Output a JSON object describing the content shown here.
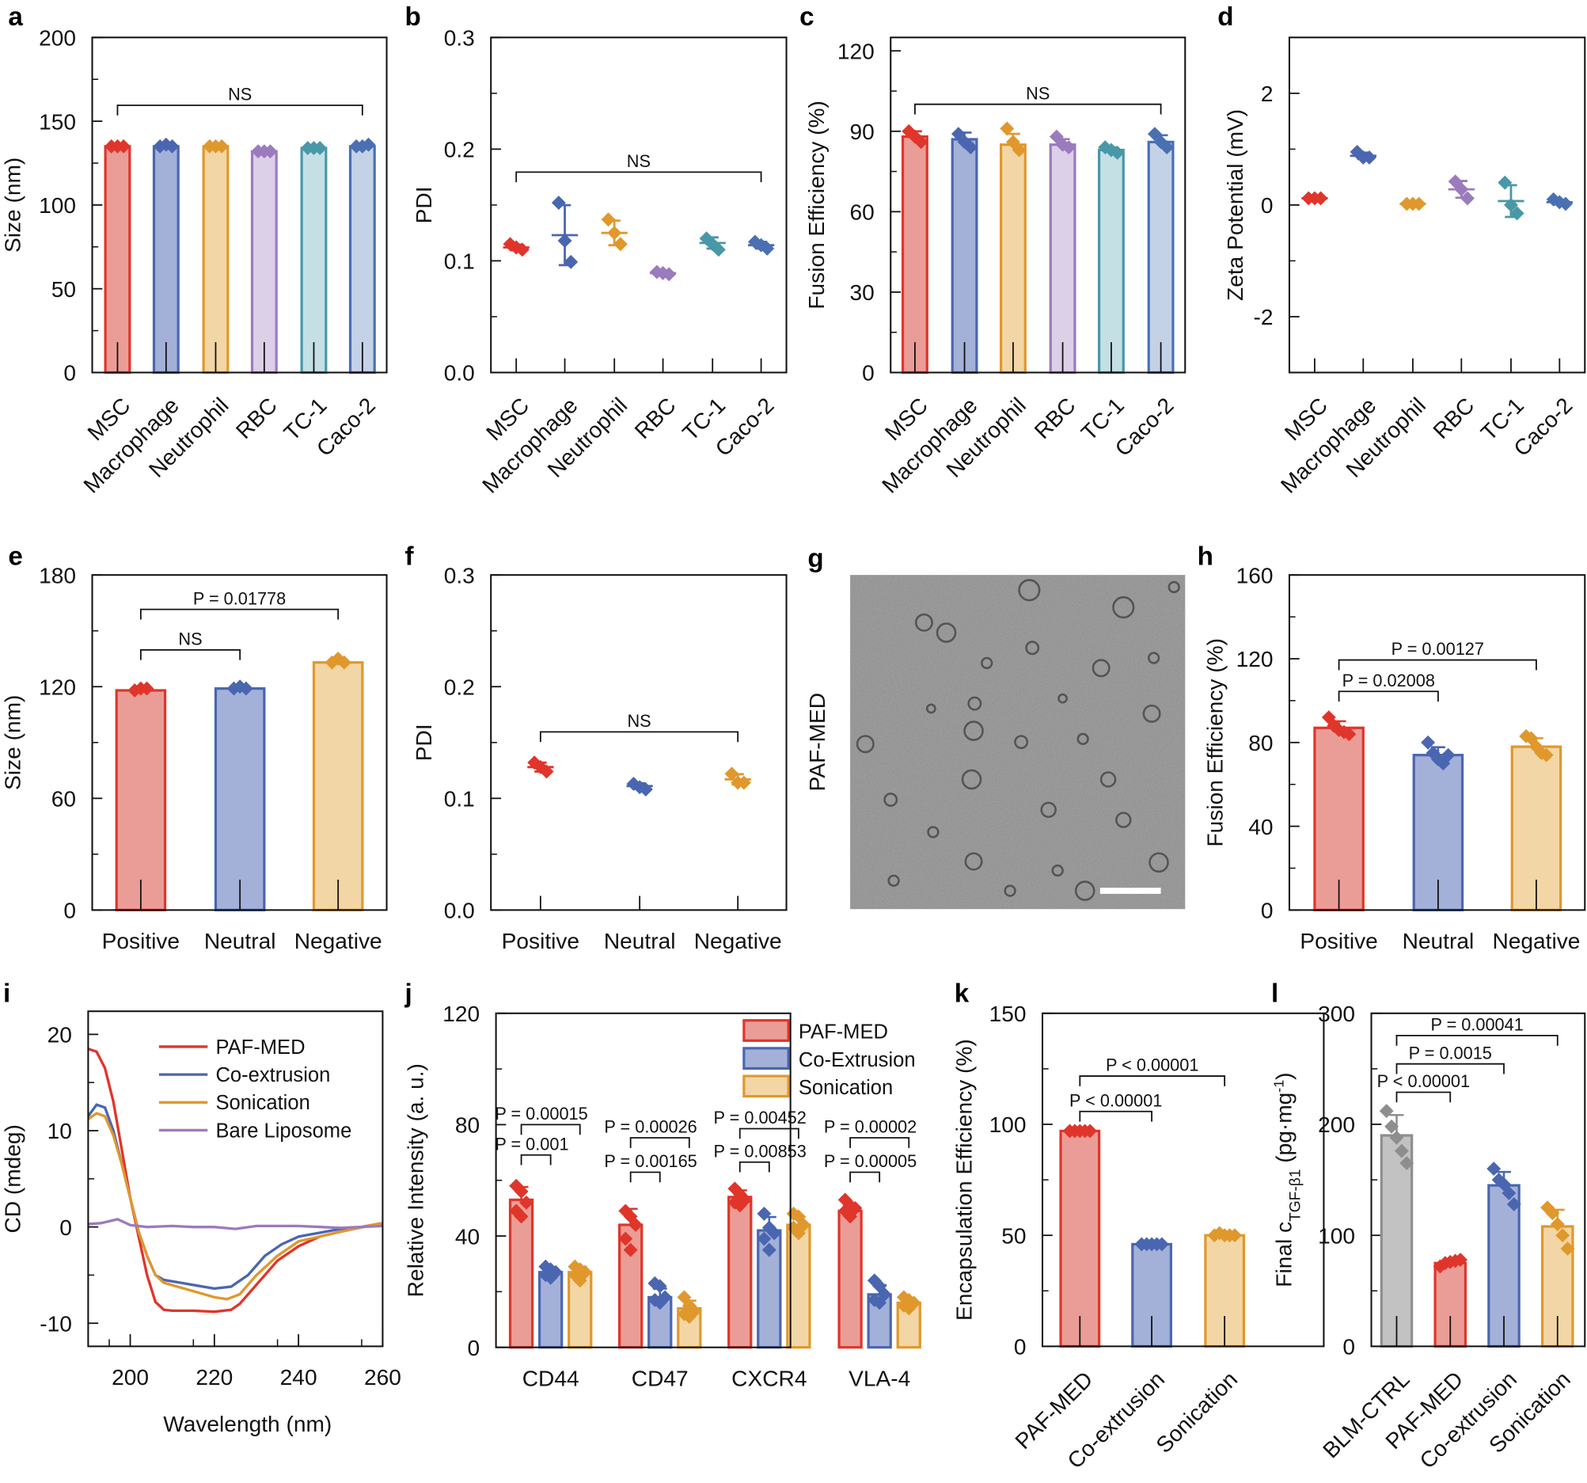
{
  "colors": {
    "red": {
      "line": "#e0352b",
      "fill": "#ea9d96"
    },
    "blue": {
      "line": "#4a66b0",
      "fill": "#a3b1d8"
    },
    "orange": {
      "line": "#e0982c",
      "fill": "#f3d6a6"
    },
    "purple": {
      "line": "#9a7bbd",
      "fill": "#dccfe8"
    },
    "teal": {
      "line": "#4898a8",
      "fill": "#c4e0e5"
    },
    "slate": {
      "line": "#4a70b2",
      "fill": "#c4d2e8"
    },
    "gray": {
      "line": "#8e8e8e",
      "fill": "#c2c2c2"
    }
  },
  "image_panel": {
    "letter": "g",
    "label": "PAF-MED",
    "scale_bar": true
  },
  "chart_data": [
    {
      "panel": "a",
      "letter": "a",
      "type": "bar",
      "ylabel": "Size (nm)",
      "ylim": [
        0,
        200
      ],
      "yticks": [
        "0",
        "50",
        "100",
        "150",
        "200"
      ],
      "grid": false,
      "categories": [
        "MSC",
        "Macrophage",
        "Neutrophil",
        "RBC",
        "TC-1",
        "Caco-2"
      ],
      "colors": [
        "red",
        "blue",
        "orange",
        "purple",
        "teal",
        "slate"
      ],
      "values": [
        135,
        135,
        135,
        132,
        134,
        135
      ],
      "points": [
        [
          135,
          135,
          135
        ],
        [
          135,
          136,
          135
        ],
        [
          135,
          135,
          135
        ],
        [
          132,
          132,
          132
        ],
        [
          134,
          134,
          134
        ],
        [
          135,
          135,
          136
        ]
      ],
      "brackets": [
        {
          "from": 0,
          "to": 5,
          "label": "NS"
        }
      ]
    },
    {
      "panel": "b",
      "letter": "b",
      "type": "scatter",
      "ylabel": "PDI",
      "ylim": [
        0,
        0.3
      ],
      "yticks": [
        "0.0",
        "0.1",
        "0.2",
        "0.3"
      ],
      "grid": false,
      "categories": [
        "MSC",
        "Macrophage",
        "Neutrophil",
        "RBC",
        "TC-1",
        "Caco-2"
      ],
      "colors": [
        "red",
        "blue",
        "orange",
        "purple",
        "teal",
        "slate"
      ],
      "values": [
        0.112,
        0.123,
        0.125,
        0.089,
        0.116,
        0.114
      ],
      "points": [
        [
          0.115,
          0.112,
          0.11
        ],
        [
          0.152,
          0.118,
          0.099
        ],
        [
          0.137,
          0.125,
          0.115
        ],
        [
          0.09,
          0.089,
          0.088
        ],
        [
          0.12,
          0.115,
          0.11
        ],
        [
          0.117,
          0.114,
          0.111
        ]
      ],
      "brackets": [
        {
          "from": 0,
          "to": 5,
          "label": "NS"
        }
      ]
    },
    {
      "panel": "c",
      "letter": "c",
      "type": "bar",
      "ylabel": "Fusion Efficiency (%)",
      "ylim": [
        0,
        125
      ],
      "yticks": [
        "0",
        "30",
        "60",
        "90",
        "120"
      ],
      "grid": false,
      "categories": [
        "MSC",
        "Macrophage",
        "Neutrophil",
        "RBC",
        "TC-1",
        "Caco-2"
      ],
      "colors": [
        "red",
        "blue",
        "orange",
        "purple",
        "teal",
        "slate"
      ],
      "values": [
        88,
        87,
        85,
        85,
        83,
        86
      ],
      "points": [
        [
          90,
          88,
          86
        ],
        [
          89,
          86,
          84
        ],
        [
          91,
          86,
          83
        ],
        [
          88,
          85,
          84
        ],
        [
          84,
          83,
          82
        ],
        [
          89,
          86,
          84
        ]
      ],
      "brackets": [
        {
          "from": 0,
          "to": 5,
          "label": "NS"
        }
      ]
    },
    {
      "panel": "d",
      "letter": "d",
      "type": "scatter",
      "ylabel": "Zeta Potential (mV)",
      "ylim": [
        -3,
        3
      ],
      "yticks": [
        "-2",
        "0",
        "2"
      ],
      "grid": false,
      "categories": [
        "MSC",
        "Macrophage",
        "Neutrophil",
        "RBC",
        "TC-1",
        "Caco-2"
      ],
      "colors": [
        "red",
        "blue",
        "orange",
        "purple",
        "teal",
        "slate"
      ],
      "values": [
        0.12,
        0.88,
        0.02,
        0.28,
        0.07,
        0.05
      ],
      "points": [
        [
          0.12,
          0.12,
          0.12
        ],
        [
          0.95,
          0.85,
          0.85
        ],
        [
          0.02,
          0.02,
          0.02
        ],
        [
          0.42,
          0.28,
          0.12
        ],
        [
          0.4,
          0.0,
          -0.15
        ],
        [
          0.1,
          0.05,
          0.02
        ]
      ],
      "brackets": []
    },
    {
      "panel": "e",
      "letter": "e",
      "type": "bar",
      "ylabel": "Size (nm)",
      "ylim": [
        0,
        180
      ],
      "yticks": [
        "0",
        "60",
        "120",
        "180"
      ],
      "grid": false,
      "categories": [
        "Positive",
        "Neutral",
        "Negative"
      ],
      "colors": [
        "red",
        "blue",
        "orange"
      ],
      "values": [
        118,
        119,
        133
      ],
      "points": [
        [
          118,
          119,
          119
        ],
        [
          119,
          120,
          119
        ],
        [
          133,
          135,
          133
        ]
      ],
      "brackets": [
        {
          "from": 0,
          "to": 2,
          "label": "P = 0.01778"
        },
        {
          "from": 0,
          "to": 1,
          "label": "NS"
        }
      ]
    },
    {
      "panel": "f",
      "letter": "f",
      "type": "scatter",
      "ylabel": "PDI",
      "ylim": [
        0,
        0.3
      ],
      "yticks": [
        "0.0",
        "0.1",
        "0.2",
        "0.3"
      ],
      "grid": false,
      "categories": [
        "Positive",
        "Neutral",
        "Negative"
      ],
      "colors": [
        "red",
        "blue",
        "orange"
      ],
      "values": [
        0.128,
        0.111,
        0.117
      ],
      "points": [
        [
          0.132,
          0.128,
          0.124
        ],
        [
          0.113,
          0.11,
          0.108
        ],
        [
          0.122,
          0.114,
          0.114
        ]
      ],
      "brackets": [
        {
          "from": 0,
          "to": 2,
          "label": "NS"
        }
      ]
    },
    {
      "panel": "h",
      "letter": "h",
      "type": "bar",
      "ylabel": "Fusion Efficiency (%)",
      "ylim": [
        0,
        160
      ],
      "yticks": [
        "0",
        "40",
        "80",
        "120",
        "160"
      ],
      "grid": false,
      "categories": [
        "Positive",
        "Neutral",
        "Negative"
      ],
      "colors": [
        "red",
        "blue",
        "orange"
      ],
      "values": [
        87,
        74,
        78
      ],
      "points": [
        [
          92,
          88,
          86,
          85,
          84
        ],
        [
          80,
          75,
          72,
          70,
          74
        ],
        [
          83,
          82,
          78,
          75,
          74
        ]
      ],
      "brackets": [
        {
          "from": 0,
          "to": 2,
          "label": "P = 0.00127"
        },
        {
          "from": 0,
          "to": 1,
          "label": "P = 0.02008"
        }
      ]
    },
    {
      "panel": "i",
      "letter": "i",
      "type": "line",
      "xlabel": "Wavelength (nm)",
      "ylabel": "CD (mdeg)",
      "xlim": [
        190,
        260
      ],
      "ylim": [
        -12.4,
        22.4
      ],
      "xticks": [
        "200",
        "220",
        "240",
        "260"
      ],
      "yticks": [
        "-10",
        "0",
        "10",
        "20"
      ],
      "grid": false,
      "legend": "top-right",
      "series": [
        {
          "name": "PAF-MED",
          "color": "red",
          "x": [
            190,
            192,
            194,
            196,
            198,
            200,
            202,
            204,
            206,
            208,
            210,
            215,
            220,
            224,
            226,
            230,
            235,
            240,
            245,
            250,
            255,
            260
          ],
          "y": [
            18.5,
            18.2,
            16.5,
            13,
            8,
            3,
            -1,
            -5,
            -7.8,
            -8.6,
            -8.7,
            -8.7,
            -8.8,
            -8.6,
            -8,
            -6,
            -3.5,
            -2,
            -1,
            -0.5,
            0,
            0.4
          ]
        },
        {
          "name": "Co-extrusion",
          "color": "blue",
          "x": [
            190,
            192,
            194,
            196,
            198,
            200,
            202,
            204,
            206,
            208,
            212,
            216,
            220,
            224,
            228,
            232,
            236,
            240,
            245,
            250,
            260
          ],
          "y": [
            11.5,
            12.7,
            12.4,
            10,
            6.5,
            3,
            -0.5,
            -3,
            -5,
            -5.5,
            -5.8,
            -6.1,
            -6.4,
            -6.2,
            -5,
            -3,
            -1.8,
            -1,
            -0.6,
            -0.2,
            0.2
          ]
        },
        {
          "name": "Sonication",
          "color": "orange",
          "x": [
            190,
            192,
            194,
            196,
            198,
            200,
            202,
            204,
            206,
            208,
            212,
            216,
            220,
            223,
            226,
            230,
            235,
            240,
            245,
            250,
            260
          ],
          "y": [
            11.2,
            11.8,
            11.5,
            9.5,
            6.5,
            3,
            -0.5,
            -3,
            -5,
            -5.8,
            -6.3,
            -6.8,
            -7.3,
            -7.5,
            -7,
            -5,
            -3,
            -1.5,
            -1,
            -0.5,
            0.4
          ]
        },
        {
          "name": "Bare Liposome",
          "color": "purple",
          "x": [
            190,
            193,
            197,
            200,
            204,
            210,
            215,
            220,
            225,
            230,
            240,
            250,
            260
          ],
          "y": [
            0.3,
            0.4,
            0.8,
            0.2,
            0,
            0.1,
            0,
            0,
            -0.2,
            0.1,
            0.1,
            -0.1,
            0.1
          ]
        }
      ]
    },
    {
      "panel": "j",
      "letter": "j",
      "type": "grouped-bar",
      "ylabel": "Relative Intensity (a. u.)",
      "ylim": [
        0,
        120
      ],
      "yticks": [
        "0",
        "40",
        "80",
        "120"
      ],
      "grid": false,
      "legend": "top-right",
      "categories": [
        "CD44",
        "CD47",
        "CXCR4",
        "VLA-4"
      ],
      "series": [
        {
          "name": "PAF-MED",
          "color": "red",
          "values": [
            53,
            44,
            54,
            49
          ],
          "points": [
            [
              58,
              56,
              52,
              49,
              47
            ],
            [
              49,
              47,
              44,
              39,
              35
            ],
            [
              57,
              55,
              53,
              52,
              51
            ],
            [
              53,
              51,
              50,
              49,
              47
            ]
          ]
        },
        {
          "name": "Co-Extrusion",
          "color": "blue",
          "values": [
            27,
            18,
            42,
            19
          ],
          "points": [
            [
              29,
              28,
              27,
              26,
              25
            ],
            [
              23,
              22,
              18,
              17,
              16
            ],
            [
              48,
              43,
              41,
              39,
              35
            ],
            [
              24,
              22,
              19,
              17,
              16
            ]
          ]
        },
        {
          "name": "Sonication",
          "color": "orange",
          "values": [
            27,
            14,
            44,
            16
          ],
          "points": [
            [
              29,
              28,
              27,
              26,
              24
            ],
            [
              18,
              15,
              13,
              12,
              11
            ],
            [
              48,
              47,
              44,
              43,
              41
            ],
            [
              18,
              17,
              16,
              15,
              14
            ]
          ]
        }
      ],
      "brackets": [
        {
          "group": 0,
          "from": 0,
          "to": 2,
          "label": "P = 0.00015"
        },
        {
          "group": 0,
          "from": 0,
          "to": 1,
          "label": "P = 0.001"
        },
        {
          "group": 1,
          "from": 0,
          "to": 2,
          "label": "P = 0.00026"
        },
        {
          "group": 1,
          "from": 0,
          "to": 1,
          "label": "P = 0.00165"
        },
        {
          "group": 2,
          "from": 0,
          "to": 2,
          "label": "P = 0.00452"
        },
        {
          "group": 2,
          "from": 0,
          "to": 1,
          "label": "P = 0.00853"
        },
        {
          "group": 3,
          "from": 0,
          "to": 2,
          "label": "P = 0.00002"
        },
        {
          "group": 3,
          "from": 0,
          "to": 1,
          "label": "P = 0.00005"
        }
      ]
    },
    {
      "panel": "k",
      "letter": "k",
      "type": "bar",
      "ylabel": "Encapsulation Efficiency (%)",
      "ylim": [
        0,
        150
      ],
      "yticks": [
        "0",
        "50",
        "100",
        "150"
      ],
      "grid": false,
      "categories": [
        "PAF-MED",
        "Co-extrusion",
        "Sonication"
      ],
      "colors": [
        "red",
        "blue",
        "orange"
      ],
      "values": [
        97,
        46,
        50
      ],
      "points": [
        [
          97,
          97,
          97,
          97,
          97
        ],
        [
          46,
          46,
          46,
          46,
          46
        ],
        [
          50,
          51,
          50,
          50,
          50
        ]
      ],
      "brackets": [
        {
          "from": 0,
          "to": 2,
          "label": "P < 0.00001"
        },
        {
          "from": 0,
          "to": 1,
          "label": "P < 0.00001"
        }
      ]
    },
    {
      "panel": "l",
      "letter": "l",
      "type": "bar",
      "ylabel": "Final c",
      "ylabel_sub": "TGF-β1",
      "ylabel_unit": " (pg·mg",
      "ylabel_sup": "-1",
      "ylabel_end": ")",
      "ylim": [
        0,
        300
      ],
      "yticks": [
        "0",
        "100",
        "200",
        "300"
      ],
      "grid": false,
      "categories": [
        "BLM-CTRL",
        "PAF-MED",
        "Co-extrusion",
        "Sonication"
      ],
      "colors": [
        "gray",
        "red",
        "blue",
        "orange"
      ],
      "values": [
        190,
        75,
        145,
        108
      ],
      "points": [
        [
          212,
          198,
          188,
          176,
          165
        ],
        [
          72,
          75,
          76,
          77,
          78
        ],
        [
          160,
          150,
          146,
          138,
          128
        ],
        [
          125,
          120,
          110,
          100,
          88
        ]
      ],
      "brackets": [
        {
          "from": 0,
          "to": 3,
          "label": "P = 0.00041"
        },
        {
          "from": 0,
          "to": 2,
          "label": "P = 0.0015"
        },
        {
          "from": 0,
          "to": 1,
          "label": "P < 0.00001"
        }
      ]
    }
  ]
}
